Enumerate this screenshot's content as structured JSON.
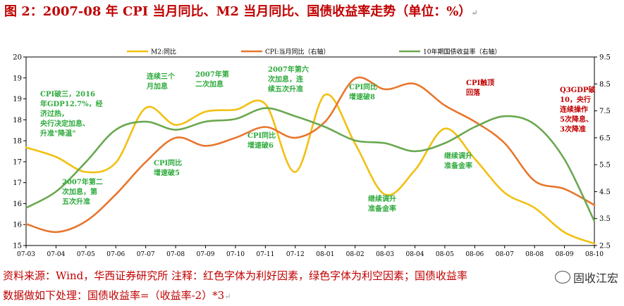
{
  "title": "图 2：2007-08 年 CPI 当月同比、M2 当月同比、国债收益率走势（单位：%）",
  "footer": {
    "line1": "资料来源：Wind，华西证券研究所 注释：红色字体为利好因素，绿色字体为利空因素；国债收益率",
    "line2": "数据做如下处理：国债收益率=（收益率-2）*3"
  },
  "watermark": "固收江宏",
  "colors": {
    "m2": "#f2c012",
    "cpi": "#e8762d",
    "bond": "#6aa84f",
    "ann_green": "#2eaa3c",
    "ann_red": "#c00000",
    "title": "#c00000"
  },
  "chart_data": {
    "type": "line",
    "categories": [
      "07-03",
      "07-04",
      "07-05",
      "07-06",
      "07-07",
      "07-08",
      "07-09",
      "07-10",
      "07-11",
      "07-12",
      "08-01",
      "08-02",
      "08-03",
      "08-04",
      "08-05",
      "08-06",
      "08-07",
      "08-08",
      "08-09",
      "08-10"
    ],
    "left_axis": {
      "ylim": [
        15,
        20
      ],
      "ticks": [
        "15",
        "16",
        "16",
        "17",
        "17",
        "18",
        "18",
        "19",
        "19",
        "20"
      ]
    },
    "right_axis": {
      "ylim": [
        2.5,
        9.5
      ],
      "ticks": [
        "2.5",
        "3.5",
        "4.5",
        "5.5",
        "6.5",
        "7.5",
        "8.5",
        "9.5"
      ]
    },
    "legend_placement": "top",
    "series": [
      {
        "name": "M2:同比",
        "axis": "left",
        "color_key": "m2",
        "points": [
          [
            0,
            17.6
          ],
          [
            1,
            17.35
          ],
          [
            2,
            16.95
          ],
          [
            3,
            17.2
          ],
          [
            4,
            18.65
          ],
          [
            5,
            18.2
          ],
          [
            6,
            18.55
          ],
          [
            7,
            18.6
          ],
          [
            8,
            18.75
          ],
          [
            9,
            16.95
          ],
          [
            10,
            19.0
          ],
          [
            11,
            17.7
          ],
          [
            12,
            16.35
          ],
          [
            13,
            17.0
          ],
          [
            14,
            18.1
          ],
          [
            15,
            17.3
          ],
          [
            16,
            16.4
          ],
          [
            17,
            16.0
          ],
          [
            18,
            15.35
          ],
          [
            19,
            15.05
          ]
        ]
      },
      {
        "name": "CPI:当月同比（右轴）",
        "axis": "right",
        "color_key": "cpi",
        "points": [
          [
            0,
            3.3
          ],
          [
            1,
            3.0
          ],
          [
            2,
            3.4
          ],
          [
            3,
            4.4
          ],
          [
            4,
            5.6
          ],
          [
            5,
            6.5
          ],
          [
            6,
            6.2
          ],
          [
            7,
            6.5
          ],
          [
            8,
            6.9
          ],
          [
            9,
            6.5
          ],
          [
            10,
            7.1
          ],
          [
            11,
            8.7
          ],
          [
            12,
            8.3
          ],
          [
            13,
            8.5
          ],
          [
            14,
            7.7
          ],
          [
            15,
            7.1
          ],
          [
            16,
            6.3
          ],
          [
            17,
            4.9
          ],
          [
            18,
            4.6
          ],
          [
            19,
            4.0
          ]
        ]
      },
      {
        "name": "10年期国债收益率（右轴）",
        "axis": "right",
        "color_key": "bond",
        "points": [
          [
            0,
            3.9
          ],
          [
            1,
            4.5
          ],
          [
            2,
            5.6
          ],
          [
            3,
            6.8
          ],
          [
            4,
            7.1
          ],
          [
            5,
            6.8
          ],
          [
            6,
            7.1
          ],
          [
            7,
            7.2
          ],
          [
            8,
            7.6
          ],
          [
            9,
            7.3
          ],
          [
            10,
            6.9
          ],
          [
            11,
            6.4
          ],
          [
            12,
            6.3
          ],
          [
            13,
            6.0
          ],
          [
            14,
            6.3
          ],
          [
            15,
            6.9
          ],
          [
            16,
            7.3
          ],
          [
            17,
            7.0
          ],
          [
            18,
            5.7
          ],
          [
            19,
            3.4
          ]
        ]
      }
    ],
    "annotations": [
      {
        "color_key": "ann_green",
        "lines": [
          "CPI破三，2016",
          "年GDP12.7%，经",
          "济过热，",
          "央行决定加息、",
          "升准\"降温\""
        ]
      },
      {
        "color_key": "ann_green",
        "lines": [
          "连续三个",
          "月加息"
        ]
      },
      {
        "color_key": "ann_green",
        "lines": [
          "2007年第",
          "二次加息"
        ]
      },
      {
        "color_key": "ann_green",
        "lines": [
          "2007年第六",
          "次加息，连",
          "续五次升准"
        ]
      },
      {
        "color_key": "ann_green",
        "lines": [
          "CPI同比",
          "增速破8"
        ]
      },
      {
        "color_key": "ann_red",
        "lines": [
          "CPI触顶",
          "回落"
        ]
      },
      {
        "color_key": "ann_red",
        "lines": [
          "Q3GDP破",
          "10，央行",
          "连续操作",
          "5次降息、",
          "3次降准"
        ]
      },
      {
        "color_key": "ann_green",
        "lines": [
          "CPI同比",
          "增速破5"
        ]
      },
      {
        "color_key": "ann_green",
        "lines": [
          "CPI同比",
          "增速破6"
        ]
      },
      {
        "color_key": "ann_green",
        "lines": [
          "2007年第二",
          "次加息，第",
          "五次升准"
        ]
      },
      {
        "color_key": "ann_green",
        "lines": [
          "继续调升",
          "准备金率"
        ]
      },
      {
        "color_key": "ann_green",
        "lines": [
          "继续调升",
          "准备金率"
        ]
      }
    ]
  }
}
